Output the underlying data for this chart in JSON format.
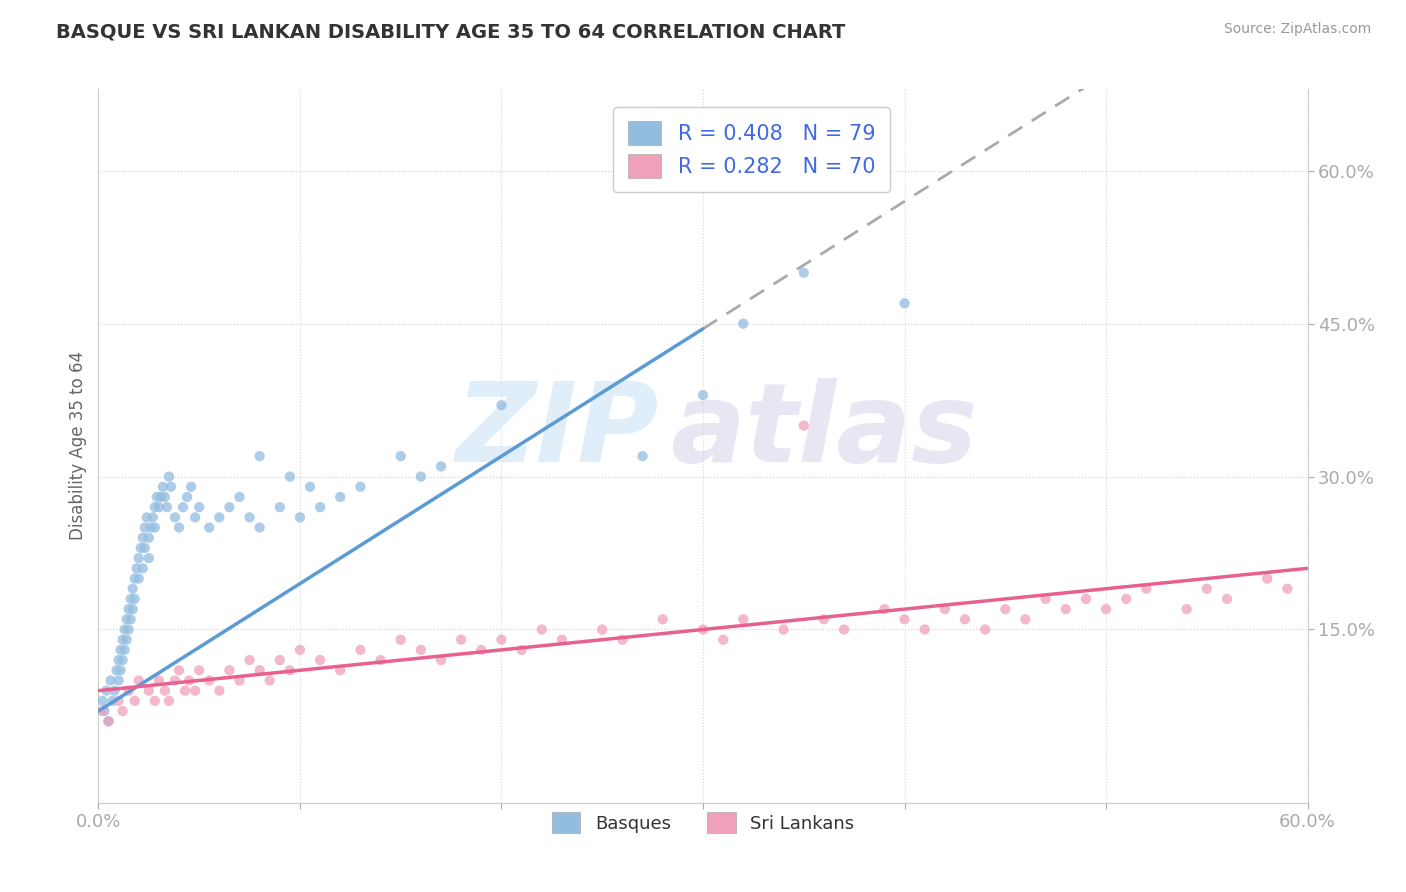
{
  "title": "BASQUE VS SRI LANKAN DISABILITY AGE 35 TO 64 CORRELATION CHART",
  "source": "Source: ZipAtlas.com",
  "ylabel": "Disability Age 35 to 64",
  "xlim": [
    0.0,
    0.6
  ],
  "ylim": [
    -0.02,
    0.68
  ],
  "yticks_right": [
    0.15,
    0.3,
    0.45,
    0.6
  ],
  "ytick_labels_right": [
    "15.0%",
    "30.0%",
    "45.0%",
    "60.0%"
  ],
  "basque_R": 0.408,
  "basque_N": 79,
  "srilankan_R": 0.282,
  "srilankan_N": 70,
  "basque_scatter_color": "#92bce0",
  "srilankan_scatter_color": "#f0a0b8",
  "basque_line_color": "#5b9bd5",
  "srilankan_line_color": "#e86090",
  "legend_text_color": "#4169e1",
  "background_color": "#ffffff",
  "basque_x": [
    0.002,
    0.003,
    0.004,
    0.005,
    0.006,
    0.007,
    0.008,
    0.009,
    0.01,
    0.01,
    0.011,
    0.011,
    0.012,
    0.012,
    0.013,
    0.013,
    0.014,
    0.014,
    0.015,
    0.015,
    0.016,
    0.016,
    0.017,
    0.017,
    0.018,
    0.018,
    0.019,
    0.02,
    0.02,
    0.021,
    0.022,
    0.022,
    0.023,
    0.023,
    0.024,
    0.025,
    0.025,
    0.026,
    0.027,
    0.028,
    0.028,
    0.029,
    0.03,
    0.031,
    0.032,
    0.033,
    0.034,
    0.035,
    0.036,
    0.038,
    0.04,
    0.042,
    0.044,
    0.046,
    0.048,
    0.05,
    0.055,
    0.06,
    0.065,
    0.07,
    0.075,
    0.08,
    0.09,
    0.1,
    0.11,
    0.12,
    0.13,
    0.15,
    0.16,
    0.17,
    0.08,
    0.095,
    0.105,
    0.2,
    0.27,
    0.3,
    0.32,
    0.35,
    0.4
  ],
  "basque_y": [
    0.08,
    0.07,
    0.09,
    0.06,
    0.1,
    0.08,
    0.09,
    0.11,
    0.12,
    0.1,
    0.13,
    0.11,
    0.14,
    0.12,
    0.15,
    0.13,
    0.16,
    0.14,
    0.17,
    0.15,
    0.18,
    0.16,
    0.19,
    0.17,
    0.2,
    0.18,
    0.21,
    0.22,
    0.2,
    0.23,
    0.24,
    0.21,
    0.25,
    0.23,
    0.26,
    0.24,
    0.22,
    0.25,
    0.26,
    0.27,
    0.25,
    0.28,
    0.27,
    0.28,
    0.29,
    0.28,
    0.27,
    0.3,
    0.29,
    0.26,
    0.25,
    0.27,
    0.28,
    0.29,
    0.26,
    0.27,
    0.25,
    0.26,
    0.27,
    0.28,
    0.26,
    0.25,
    0.27,
    0.26,
    0.27,
    0.28,
    0.29,
    0.32,
    0.3,
    0.31,
    0.32,
    0.3,
    0.29,
    0.37,
    0.32,
    0.38,
    0.45,
    0.5,
    0.47
  ],
  "srilankan_x": [
    0.002,
    0.005,
    0.01,
    0.012,
    0.015,
    0.018,
    0.02,
    0.025,
    0.028,
    0.03,
    0.033,
    0.035,
    0.038,
    0.04,
    0.043,
    0.045,
    0.048,
    0.05,
    0.055,
    0.06,
    0.065,
    0.07,
    0.075,
    0.08,
    0.085,
    0.09,
    0.095,
    0.1,
    0.11,
    0.12,
    0.13,
    0.14,
    0.15,
    0.16,
    0.17,
    0.18,
    0.19,
    0.2,
    0.21,
    0.22,
    0.23,
    0.25,
    0.26,
    0.28,
    0.3,
    0.31,
    0.32,
    0.34,
    0.35,
    0.36,
    0.37,
    0.39,
    0.4,
    0.41,
    0.42,
    0.43,
    0.44,
    0.45,
    0.46,
    0.47,
    0.48,
    0.49,
    0.5,
    0.51,
    0.52,
    0.54,
    0.55,
    0.56,
    0.58,
    0.59
  ],
  "srilankan_y": [
    0.07,
    0.06,
    0.08,
    0.07,
    0.09,
    0.08,
    0.1,
    0.09,
    0.08,
    0.1,
    0.09,
    0.08,
    0.1,
    0.11,
    0.09,
    0.1,
    0.09,
    0.11,
    0.1,
    0.09,
    0.11,
    0.1,
    0.12,
    0.11,
    0.1,
    0.12,
    0.11,
    0.13,
    0.12,
    0.11,
    0.13,
    0.12,
    0.14,
    0.13,
    0.12,
    0.14,
    0.13,
    0.14,
    0.13,
    0.15,
    0.14,
    0.15,
    0.14,
    0.16,
    0.15,
    0.14,
    0.16,
    0.15,
    0.35,
    0.16,
    0.15,
    0.17,
    0.16,
    0.15,
    0.17,
    0.16,
    0.15,
    0.17,
    0.16,
    0.18,
    0.17,
    0.18,
    0.17,
    0.18,
    0.19,
    0.17,
    0.19,
    0.18,
    0.2,
    0.19
  ],
  "basque_trend_start": 0.0,
  "basque_trend_solid_end": 0.3,
  "basque_trend_dash_end": 0.6,
  "basque_trend_y0": 0.07,
  "basque_trend_slope": 1.25,
  "srilankan_trend_start": 0.0,
  "srilankan_trend_solid_end": 0.6,
  "srilankan_trend_y0": 0.09,
  "srilankan_trend_slope": 0.2
}
